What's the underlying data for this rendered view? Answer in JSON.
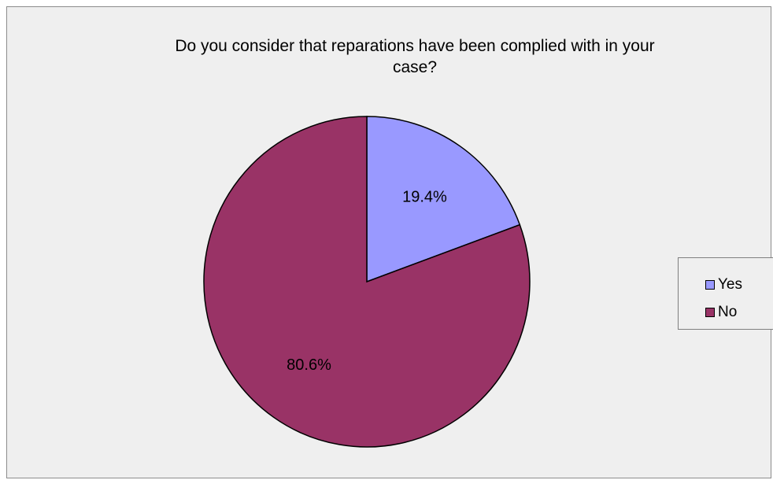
{
  "chart_data": {
    "type": "pie",
    "title": "Do you consider that reparations have been complied with in your case?",
    "title_lines": [
      "Do you consider that reparations have been complied with in your",
      "case?"
    ],
    "slices": [
      {
        "label": "Yes",
        "value": 19.4,
        "value_label": "19.4%",
        "color": "#9999ff"
      },
      {
        "label": "No",
        "value": 80.6,
        "value_label": "80.6%",
        "color": "#993366"
      }
    ],
    "legend": {
      "placement": "right"
    },
    "background_color": "#efefef",
    "border_color": "#8c8c8c"
  }
}
